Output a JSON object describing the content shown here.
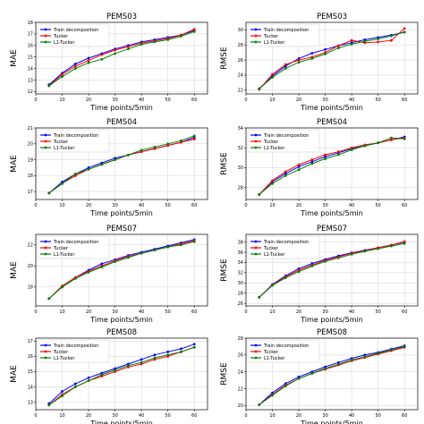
{
  "figure": {
    "colors": {
      "train": "#0000ff",
      "tucker": "#ff0000",
      "l1": "#008000",
      "grid": "#d9d9d9",
      "axis": "#000000"
    },
    "legend_labels": [
      "Train decomposition",
      "Tucker",
      "L1-Tucker"
    ]
  },
  "chart_data": [
    {
      "type": "line",
      "title": "PEMS03",
      "xlabel": "Time points/5min",
      "ylabel": "MAE",
      "x": [
        5,
        10,
        15,
        20,
        25,
        30,
        35,
        40,
        45,
        50,
        55,
        60
      ],
      "xlim": [
        0,
        65
      ],
      "xticks": [
        0,
        10,
        20,
        30,
        40,
        50,
        60
      ],
      "ylim": [
        11.8,
        18.0
      ],
      "yticks": [
        12,
        13,
        14,
        15,
        16,
        17,
        18
      ],
      "grid": true,
      "legend_position": "upper-left",
      "series": [
        {
          "name": "Train decomposition",
          "values": [
            12.6,
            13.6,
            14.4,
            14.9,
            15.3,
            15.7,
            16.0,
            16.3,
            16.5,
            16.7,
            16.9,
            17.3
          ]
        },
        {
          "name": "Tucker",
          "values": [
            12.5,
            13.5,
            14.2,
            14.7,
            15.2,
            15.6,
            15.9,
            16.2,
            16.4,
            16.6,
            16.9,
            17.4
          ]
        },
        {
          "name": "L1-Tucker",
          "values": [
            12.5,
            13.3,
            14.0,
            14.5,
            14.8,
            15.3,
            15.7,
            16.1,
            16.3,
            16.5,
            16.8,
            17.2
          ]
        }
      ]
    },
    {
      "type": "line",
      "title": "PEMS03",
      "xlabel": "Time points/5min",
      "ylabel": "RMSE",
      "x": [
        5,
        10,
        15,
        20,
        25,
        30,
        35,
        40,
        45,
        50,
        55,
        60
      ],
      "xlim": [
        0,
        65
      ],
      "xticks": [
        0,
        10,
        20,
        30,
        40,
        50,
        60
      ],
      "ylim": [
        21.5,
        31.0
      ],
      "yticks": [
        22,
        24,
        26,
        28,
        30
      ],
      "grid": true,
      "legend_position": "upper-left",
      "series": [
        {
          "name": "Train decomposition",
          "values": [
            22.2,
            23.9,
            25.2,
            26.2,
            26.9,
            27.4,
            27.9,
            28.3,
            28.7,
            29.0,
            29.3,
            29.7
          ]
        },
        {
          "name": "Tucker",
          "values": [
            22.1,
            24.1,
            25.4,
            26.0,
            26.4,
            27.0,
            27.9,
            28.6,
            28.3,
            28.4,
            28.6,
            30.2
          ]
        },
        {
          "name": "L1-Tucker",
          "values": [
            22.2,
            23.7,
            24.9,
            25.7,
            26.2,
            26.8,
            27.6,
            28.1,
            28.5,
            28.8,
            29.2,
            29.7
          ]
        }
      ]
    },
    {
      "type": "line",
      "title": "PEMS04",
      "xlabel": "Time points/5min",
      "ylabel": "MAE",
      "x": [
        5,
        10,
        15,
        20,
        25,
        30,
        35,
        40,
        45,
        50,
        55,
        60
      ],
      "xlim": [
        0,
        65
      ],
      "xticks": [
        0,
        10,
        20,
        30,
        40,
        50,
        60
      ],
      "ylim": [
        16.5,
        21.0
      ],
      "yticks": [
        17,
        18,
        19,
        20,
        21
      ],
      "grid": true,
      "legend_position": "upper-left",
      "series": [
        {
          "name": "Train decomposition",
          "values": [
            16.9,
            17.6,
            18.1,
            18.5,
            18.8,
            19.1,
            19.3,
            19.5,
            19.7,
            19.9,
            20.1,
            20.4
          ]
        },
        {
          "name": "Tucker",
          "values": [
            16.9,
            17.5,
            18.0,
            18.4,
            18.7,
            19.0,
            19.3,
            19.5,
            19.7,
            19.9,
            20.1,
            20.3
          ]
        },
        {
          "name": "L1-Tucker",
          "values": [
            16.9,
            17.5,
            18.1,
            18.4,
            18.7,
            19.0,
            19.3,
            19.6,
            19.8,
            20.0,
            20.2,
            20.5
          ]
        }
      ]
    },
    {
      "type": "line",
      "title": "PEMS04",
      "xlabel": "Time points/5min",
      "ylabel": "RMSE",
      "x": [
        5,
        10,
        15,
        20,
        25,
        30,
        35,
        40,
        45,
        50,
        55,
        60
      ],
      "xlim": [
        0,
        65
      ],
      "xticks": [
        0,
        10,
        20,
        30,
        40,
        50,
        60
      ],
      "ylim": [
        26.8,
        34.0
      ],
      "yticks": [
        28,
        30,
        32,
        34
      ],
      "grid": true,
      "legend_position": "upper-left",
      "series": [
        {
          "name": "Train decomposition",
          "values": [
            27.3,
            28.6,
            29.4,
            30.1,
            30.6,
            31.1,
            31.5,
            31.9,
            32.2,
            32.5,
            32.8,
            33.1
          ]
        },
        {
          "name": "Tucker",
          "values": [
            27.3,
            28.7,
            29.6,
            30.3,
            30.8,
            31.3,
            31.6,
            32.0,
            32.3,
            32.5,
            32.8,
            33.0
          ]
        },
        {
          "name": "L1-Tucker",
          "values": [
            27.3,
            28.4,
            29.2,
            29.8,
            30.4,
            30.9,
            31.3,
            31.8,
            32.2,
            32.5,
            33.0,
            32.9
          ]
        }
      ]
    },
    {
      "type": "line",
      "title": "PEMS07",
      "xlabel": "Time points/5min",
      "ylabel": "MAE",
      "x": [
        5,
        10,
        15,
        20,
        25,
        30,
        35,
        40,
        45,
        50,
        55,
        60
      ],
      "xlim": [
        0,
        65
      ],
      "xticks": [
        0,
        10,
        20,
        30,
        40,
        50,
        60
      ],
      "ylim": [
        16.2,
        23.0
      ],
      "yticks": [
        18,
        20,
        22
      ],
      "grid": true,
      "legend_position": "upper-left",
      "series": [
        {
          "name": "Train decomposition",
          "values": [
            16.9,
            18.0,
            18.9,
            19.6,
            20.2,
            20.6,
            21.0,
            21.3,
            21.6,
            21.9,
            22.2,
            22.5
          ]
        },
        {
          "name": "Tucker",
          "values": [
            16.9,
            18.1,
            18.9,
            19.5,
            20.0,
            20.5,
            20.9,
            21.2,
            21.5,
            21.8,
            22.1,
            22.4
          ]
        },
        {
          "name": "L1-Tucker",
          "values": [
            16.9,
            18.0,
            18.8,
            19.4,
            19.9,
            20.4,
            20.8,
            21.2,
            21.5,
            21.8,
            22.0,
            22.3
          ]
        }
      ]
    },
    {
      "type": "line",
      "title": "PEMS07",
      "xlabel": "Time points/5min",
      "ylabel": "RMSE",
      "x": [
        5,
        10,
        15,
        20,
        25,
        30,
        35,
        40,
        45,
        50,
        55,
        60
      ],
      "xlim": [
        0,
        65
      ],
      "xticks": [
        0,
        10,
        20,
        30,
        40,
        50,
        60
      ],
      "ylim": [
        25.5,
        39.5
      ],
      "yticks": [
        26,
        28,
        30,
        32,
        34,
        36,
        38
      ],
      "grid": true,
      "legend_position": "upper-left",
      "series": [
        {
          "name": "Train decomposition",
          "values": [
            27.2,
            29.7,
            31.4,
            32.8,
            33.8,
            34.6,
            35.3,
            35.9,
            36.4,
            36.9,
            37.4,
            38.0
          ]
        },
        {
          "name": "Tucker",
          "values": [
            27.2,
            29.6,
            31.2,
            32.5,
            33.5,
            34.4,
            35.1,
            35.8,
            36.3,
            36.9,
            37.4,
            38.1
          ]
        },
        {
          "name": "L1-Tucker",
          "values": [
            27.2,
            29.5,
            31.0,
            32.2,
            33.3,
            34.2,
            34.9,
            35.6,
            36.2,
            36.7,
            37.2,
            37.7
          ]
        }
      ]
    },
    {
      "type": "line",
      "title": "PEMS08",
      "xlabel": "Time points/5min",
      "ylabel": "MAE",
      "x": [
        5,
        10,
        15,
        20,
        25,
        30,
        35,
        40,
        45,
        50,
        55,
        60
      ],
      "xlim": [
        0,
        65
      ],
      "xticks": [
        0,
        10,
        20,
        30,
        40,
        50,
        60
      ],
      "ylim": [
        12.5,
        17.2
      ],
      "yticks": [
        13,
        14,
        15,
        16,
        17
      ],
      "grid": true,
      "legend_position": "upper-left",
      "series": [
        {
          "name": "Train decomposition",
          "values": [
            12.9,
            13.7,
            14.2,
            14.6,
            14.9,
            15.2,
            15.5,
            15.8,
            16.1,
            16.3,
            16.5,
            16.8
          ]
        },
        {
          "name": "Tucker",
          "values": [
            12.8,
            13.5,
            14.0,
            14.4,
            14.7,
            15.0,
            15.3,
            15.5,
            15.8,
            16.0,
            16.3,
            16.6
          ]
        },
        {
          "name": "L1-Tucker",
          "values": [
            12.8,
            13.4,
            14.0,
            14.4,
            14.8,
            15.1,
            15.4,
            15.6,
            15.9,
            16.1,
            16.3,
            16.6
          ]
        }
      ]
    },
    {
      "type": "line",
      "title": "PEMS08",
      "xlabel": "Time points/5min",
      "ylabel": "RMSE",
      "x": [
        5,
        10,
        15,
        20,
        25,
        30,
        35,
        40,
        45,
        50,
        55,
        60
      ],
      "xlim": [
        0,
        65
      ],
      "xticks": [
        0,
        10,
        20,
        30,
        40,
        50,
        60
      ],
      "ylim": [
        19.5,
        28.0
      ],
      "yticks": [
        20,
        22,
        24,
        26,
        28
      ],
      "grid": true,
      "legend_position": "upper-left",
      "series": [
        {
          "name": "Train decomposition",
          "values": [
            20.1,
            21.5,
            22.6,
            23.4,
            24.0,
            24.6,
            25.1,
            25.6,
            26.0,
            26.3,
            26.7,
            27.1
          ]
        },
        {
          "name": "Tucker",
          "values": [
            20.1,
            21.3,
            22.4,
            23.2,
            23.8,
            24.3,
            24.8,
            25.3,
            25.7,
            26.1,
            26.5,
            26.9
          ]
        },
        {
          "name": "L1-Tucker",
          "values": [
            20.1,
            21.2,
            22.3,
            23.2,
            23.8,
            24.4,
            24.9,
            25.4,
            25.8,
            26.2,
            26.6,
            27.0
          ]
        }
      ]
    }
  ]
}
